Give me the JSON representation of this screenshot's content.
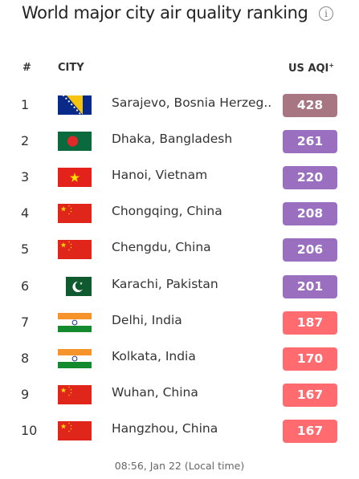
{
  "title": "World major city air quality ranking",
  "header": {
    "rank": "#",
    "city": "CITY",
    "aqi": "US AQI",
    "aqi_sup": "+"
  },
  "colors": {
    "very_unhealthy": "#9b6fc0",
    "hazardous": "#a87683",
    "unhealthy": "#ff6b6f"
  },
  "rows": [
    {
      "rank": "1",
      "city": "Sarajevo, Bosnia Herzeg...",
      "aqi": "428",
      "flag": "flag-bosnia",
      "level": "hazardous"
    },
    {
      "rank": "2",
      "city": "Dhaka, Bangladesh",
      "aqi": "261",
      "flag": "flag-bangladesh",
      "level": "very_unhealthy"
    },
    {
      "rank": "3",
      "city": "Hanoi, Vietnam",
      "aqi": "220",
      "flag": "flag-vietnam",
      "level": "very_unhealthy"
    },
    {
      "rank": "4",
      "city": "Chongqing, China",
      "aqi": "208",
      "flag": "flag-china",
      "level": "very_unhealthy"
    },
    {
      "rank": "5",
      "city": "Chengdu, China",
      "aqi": "206",
      "flag": "flag-china",
      "level": "very_unhealthy"
    },
    {
      "rank": "6",
      "city": "Karachi, Pakistan",
      "aqi": "201",
      "flag": "flag-pakistan",
      "level": "very_unhealthy"
    },
    {
      "rank": "7",
      "city": "Delhi, India",
      "aqi": "187",
      "flag": "flag-india",
      "level": "unhealthy"
    },
    {
      "rank": "8",
      "city": "Kolkata, India",
      "aqi": "170",
      "flag": "flag-india",
      "level": "unhealthy"
    },
    {
      "rank": "9",
      "city": "Wuhan, China",
      "aqi": "167",
      "flag": "flag-china",
      "level": "unhealthy"
    },
    {
      "rank": "10",
      "city": "Hangzhou, China",
      "aqi": "167",
      "flag": "flag-china",
      "level": "unhealthy"
    }
  ],
  "footer": "08:56, Jan 22 (Local time)"
}
